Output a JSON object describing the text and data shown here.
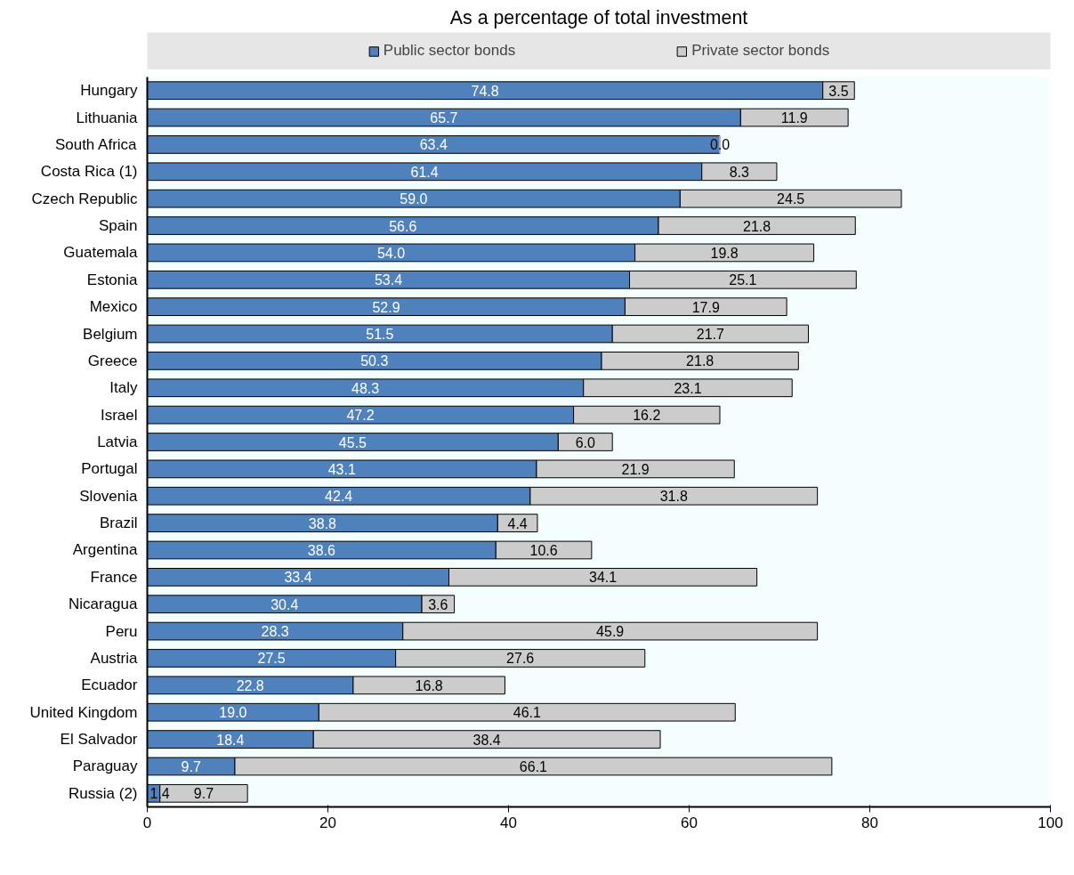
{
  "chart_data": {
    "type": "bar",
    "orientation": "horizontal",
    "stacked": true,
    "title": "As a percentage of total investment",
    "categories": [
      "Hungary",
      "Lithuania",
      "South Africa",
      "Costa Rica (1)",
      "Czech Republic",
      "Spain",
      "Guatemala",
      "Estonia",
      "Mexico",
      "Belgium",
      "Greece",
      "Italy",
      "Israel",
      "Latvia",
      "Portugal",
      "Slovenia",
      "Brazil",
      "Argentina",
      "France",
      "Nicaragua",
      "Peru",
      "Austria",
      "Ecuador",
      "United Kingdom",
      "El Salvador",
      "Paraguay",
      "Russia (2)"
    ],
    "series": [
      {
        "name": "Public sector bonds",
        "color": "#4f81bd",
        "values": [
          74.8,
          65.7,
          63.4,
          61.4,
          59.0,
          56.6,
          54.0,
          53.4,
          52.9,
          51.5,
          50.3,
          48.3,
          47.2,
          45.5,
          43.1,
          42.4,
          38.8,
          38.6,
          33.4,
          30.4,
          28.3,
          27.5,
          22.8,
          19.0,
          18.4,
          9.7,
          1.4
        ],
        "value_labels": [
          "74.8",
          "65.7",
          "63.4",
          "61.4",
          "59.0",
          "56.6",
          "54.0",
          "53.4",
          "52.9",
          "51.5",
          "50.3",
          "48.3",
          "47.2",
          "45.5",
          "43.1",
          "42.4",
          "38.8",
          "38.6",
          "33.4",
          "30.4",
          "28.3",
          "27.5",
          "22.8",
          "19.0",
          "18.4",
          "9.7",
          "1.4"
        ]
      },
      {
        "name": "Private sector bonds",
        "color": "#cccccc",
        "values": [
          3.5,
          11.9,
          0.0,
          8.3,
          24.5,
          21.8,
          19.8,
          25.1,
          17.9,
          21.7,
          21.8,
          23.1,
          16.2,
          6.0,
          21.9,
          31.8,
          4.4,
          10.6,
          34.1,
          3.6,
          45.9,
          27.6,
          16.8,
          46.1,
          38.4,
          66.1,
          9.7
        ],
        "value_labels": [
          "3.5",
          "11.9",
          "0.0",
          "8.3",
          "24.5",
          "21.8",
          "19.8",
          "25.1",
          "17.9",
          "21.7",
          "21.8",
          "23.1",
          "16.2",
          "6.0",
          "21.9",
          "31.8",
          "4.4",
          "10.6",
          "34.1",
          "3.6",
          "45.9",
          "27.6",
          "16.8",
          "46.1",
          "38.4",
          "66.1",
          "9.7"
        ]
      }
    ],
    "xlim": [
      0,
      100
    ],
    "xticks": [
      0,
      20,
      40,
      60,
      80,
      100
    ],
    "grid": false,
    "legend": "top"
  }
}
